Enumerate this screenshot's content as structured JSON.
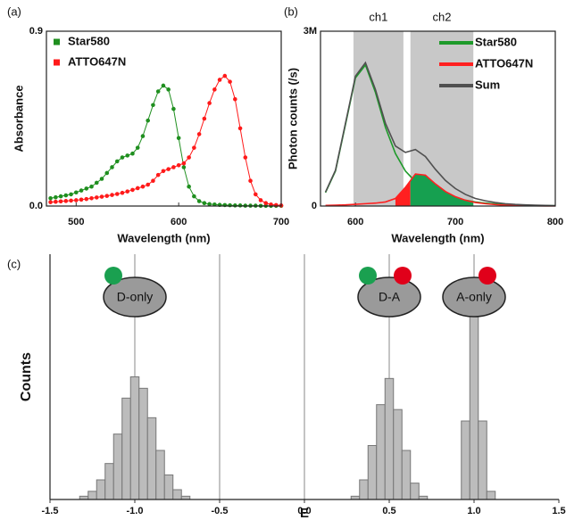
{
  "chart_data": [
    {
      "type": "line",
      "panel_label": "(a)",
      "xlabel": "Wavelength (nm)",
      "ylabel": "Absorbance",
      "markers": true,
      "legend": "upper left",
      "xlim": [
        471,
        700
      ],
      "xticks": [
        500,
        600,
        700
      ],
      "ylim": [
        0,
        0.9
      ],
      "yticks": [
        {
          "value": 0,
          "label": "0.0"
        },
        {
          "value": 0.9,
          "label": "0.9"
        }
      ],
      "x": [
        475,
        480,
        485,
        490,
        495,
        500,
        505,
        510,
        515,
        520,
        525,
        530,
        535,
        540,
        545,
        550,
        555,
        560,
        565,
        570,
        575,
        580,
        585,
        590,
        595,
        600,
        605,
        610,
        615,
        620,
        625,
        630,
        635,
        640,
        645,
        650,
        655,
        660,
        665,
        670,
        675,
        680,
        685,
        690,
        695,
        700
      ],
      "series": [
        {
          "name": "Star580",
          "color": "#1f8f1f",
          "values": [
            0.04,
            0.045,
            0.05,
            0.055,
            0.06,
            0.07,
            0.08,
            0.09,
            0.1,
            0.12,
            0.14,
            0.17,
            0.2,
            0.23,
            0.25,
            0.26,
            0.27,
            0.3,
            0.36,
            0.44,
            0.52,
            0.59,
            0.62,
            0.6,
            0.5,
            0.35,
            0.2,
            0.1,
            0.05,
            0.025,
            0.015,
            0.01,
            0.008,
            0.006,
            0.005,
            0.004,
            0.003,
            0.003,
            0.002,
            0.002,
            0.002,
            0.001,
            0.001,
            0.001,
            0.001,
            0.001
          ]
        },
        {
          "name": "ATTO647N",
          "color": "#ff1a1a",
          "values": [
            0.02,
            0.022,
            0.024,
            0.026,
            0.028,
            0.03,
            0.033,
            0.036,
            0.04,
            0.044,
            0.048,
            0.052,
            0.057,
            0.062,
            0.068,
            0.075,
            0.083,
            0.092,
            0.1,
            0.11,
            0.13,
            0.16,
            0.18,
            0.19,
            0.2,
            0.21,
            0.22,
            0.25,
            0.3,
            0.37,
            0.45,
            0.53,
            0.6,
            0.65,
            0.67,
            0.64,
            0.55,
            0.4,
            0.25,
            0.13,
            0.06,
            0.03,
            0.015,
            0.008,
            0.005,
            0.003
          ]
        }
      ]
    },
    {
      "type": "line",
      "panel_label": "(b)",
      "xlabel": "Wavelength (nm)",
      "ylabel": "Photon counts (/s)",
      "markers": false,
      "legend": "upper right",
      "xlim": [
        565,
        800
      ],
      "xticks": [
        600,
        700,
        800
      ],
      "ylim": [
        0,
        3000000
      ],
      "yticks": [
        0,
        {
          "value": 3000000,
          "label": "3M"
        }
      ],
      "regions": [
        {
          "label": "ch1",
          "range": [
            598,
            648
          ],
          "color": "#c8c8c8"
        },
        {
          "label": "ch2",
          "range": [
            655,
            718
          ],
          "color": "#c8c8c8"
        }
      ],
      "x": [
        570,
        580,
        590,
        600,
        610,
        620,
        630,
        640,
        650,
        660,
        670,
        680,
        690,
        700,
        710,
        720,
        730,
        740,
        750,
        760,
        770,
        780,
        790,
        800
      ],
      "series": [
        {
          "name": "Star580",
          "color": "#1e9a2a",
          "values": [
            230000,
            600000,
            1400000,
            2200000,
            2420000,
            1950000,
            1350000,
            900000,
            600000,
            420000,
            320000,
            250000,
            190000,
            140000,
            100000,
            70000,
            50000,
            35000,
            25000,
            18000,
            13000,
            10000,
            7000,
            5000
          ]
        },
        {
          "name": "ATTO647N",
          "color": "#ff2020",
          "values": [
            10000,
            15000,
            20000,
            30000,
            40000,
            50000,
            70000,
            130000,
            320000,
            550000,
            530000,
            380000,
            250000,
            160000,
            100000,
            60000,
            40000,
            25000,
            15000,
            10000,
            7000,
            5000,
            3000,
            2000
          ],
          "fills": [
            {
              "range": [
                640,
                655
              ],
              "color": "#ff2020"
            },
            {
              "range": [
                655,
                718
              ],
              "color": "#16a050"
            }
          ]
        },
        {
          "name": "Sum",
          "color": "#505050",
          "values": [
            240000,
            615000,
            1420000,
            2230000,
            2460000,
            2000000,
            1420000,
            1030000,
            920000,
            970000,
            850000,
            630000,
            440000,
            300000,
            200000,
            130000,
            90000,
            60000,
            40000,
            28000,
            20000,
            15000,
            10000,
            7000
          ]
        }
      ]
    },
    {
      "type": "histogram",
      "panel_label": "(c)",
      "xlabel": "E",
      "ylabel": "Counts",
      "grid": true,
      "color": "#bcbcbc",
      "xlim": [
        -1.5,
        1.5
      ],
      "xticks": [
        -1.5,
        {
          "value": -1,
          "label": "-1.0"
        },
        -0.5,
        {
          "value": 0,
          "label": "0.0"
        },
        0.5,
        {
          "value": 1,
          "label": "1.0"
        },
        1.5
      ],
      "ylim": [
        0,
        150
      ],
      "bins": [
        -1.325,
        -1.275,
        -1.225,
        -1.175,
        -1.125,
        -1.075,
        -1.025,
        -0.975,
        -0.925,
        -0.875,
        -0.825,
        -0.775,
        -0.725,
        -0.675,
        -0.625,
        -0.575,
        -0.525,
        -0.475,
        -0.425,
        -0.375,
        -0.325,
        -0.275,
        -0.225,
        -0.175,
        -0.125,
        -0.075,
        -0.025,
        0.025,
        0.075,
        0.125,
        0.175,
        0.225,
        0.275,
        0.325,
        0.375,
        0.425,
        0.475,
        0.525,
        0.575,
        0.625,
        0.675,
        0.725,
        0.775,
        0.825,
        0.875,
        0.925,
        0.975,
        1.025,
        1.075,
        1.125
      ],
      "values": [
        2,
        5,
        12,
        22,
        40,
        62,
        75,
        68,
        50,
        30,
        15,
        6,
        2,
        0,
        0,
        0,
        0,
        0,
        0,
        0,
        0,
        0,
        0,
        0,
        0,
        0,
        0,
        0,
        0,
        0,
        0,
        0,
        2,
        12,
        33,
        58,
        74,
        55,
        30,
        10,
        2,
        0,
        0,
        0,
        0,
        48,
        135,
        48,
        5
      ],
      "annotations": [
        {
          "text": "D-only",
          "x": -1,
          "dots": [
            {
              "color": "#1aa050",
              "side": "left"
            }
          ]
        },
        {
          "text": "D-A",
          "x": 0.5,
          "dots": [
            {
              "color": "#1aa050",
              "side": "left"
            },
            {
              "color": "#e0001a",
              "side": "right"
            }
          ]
        },
        {
          "text": "A-only",
          "x": 1,
          "dots": [
            {
              "color": "#e0001a",
              "side": "right"
            }
          ]
        }
      ]
    }
  ]
}
